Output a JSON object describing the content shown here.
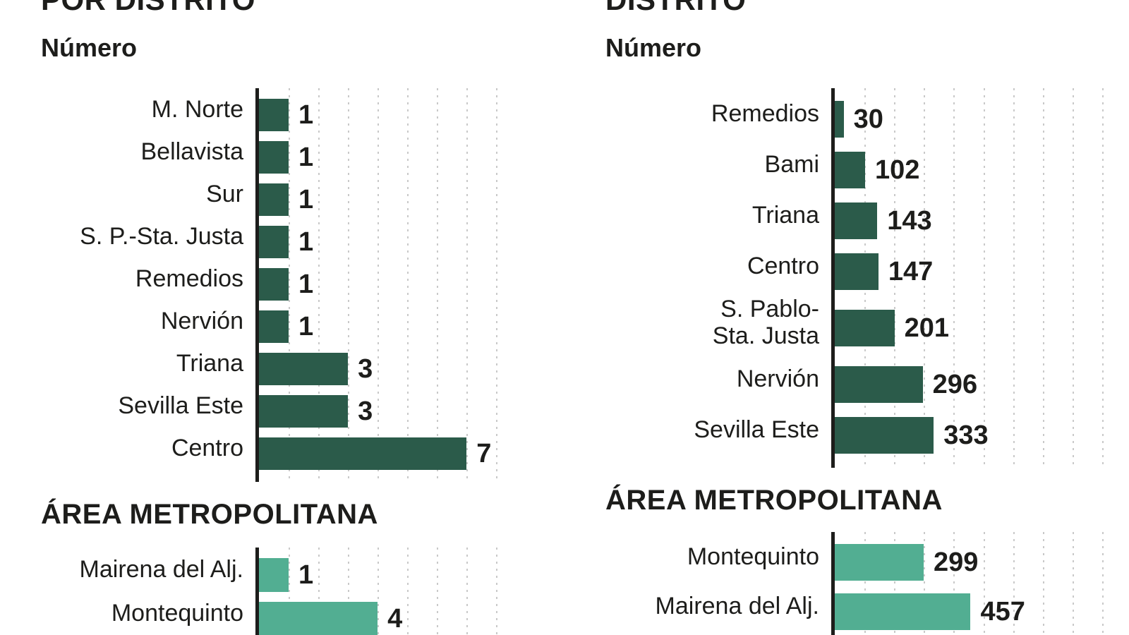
{
  "page": {
    "background": "#ffffff",
    "text_color": "#1d1d1b"
  },
  "colors": {
    "district_bar": "#2b5b4a",
    "metro_bar": "#52ae92",
    "axis": "#1d1d1b",
    "gridline": "#c9c9c9"
  },
  "left": {
    "title": "POR DISTRITO",
    "subtitle": "Número",
    "metro_heading": "ÁREA METROPOLITANA"
  },
  "right": {
    "title": "DISTRITO",
    "subtitle": "Número",
    "metro_heading": "ÁREA METROPOLITANA"
  },
  "chart_data": [
    {
      "id": "left-district",
      "type": "bar",
      "orientation": "horizontal",
      "title": "POR DISTRITO",
      "ylabel": "Número",
      "categories": [
        "M. Norte",
        "Bellavista",
        "Sur",
        "S. P.-Sta. Justa",
        "Remedios",
        "Nervión",
        "Triana",
        "Sevilla Este",
        "Centro"
      ],
      "values": [
        1,
        1,
        1,
        1,
        1,
        1,
        3,
        3,
        7
      ],
      "xlim": [
        0,
        9.3
      ],
      "axis_max": 9.3,
      "grid_step": 1,
      "grid_count": 8,
      "grid_on": true,
      "legend": "none",
      "bar_color": "#2b5b4a"
    },
    {
      "id": "left-metro",
      "type": "bar",
      "orientation": "horizontal",
      "title": "ÁREA METROPOLITANA",
      "categories": [
        "Mairena del Alj.",
        "Montequinto"
      ],
      "values": [
        1,
        4
      ],
      "xlim": [
        0,
        9.3
      ],
      "axis_max": 9.3,
      "grid_step": 1,
      "grid_count": 8,
      "grid_on": true,
      "legend": "none",
      "bar_color": "#52ae92"
    },
    {
      "id": "right-district",
      "type": "bar",
      "orientation": "horizontal",
      "title": "DISTRITO",
      "ylabel": "Número",
      "categories": [
        "Remedios",
        "Bami",
        "Triana",
        "Centro",
        "S. Pablo-\nSta. Justa",
        "Nervión",
        "Sevilla Este"
      ],
      "values": [
        30,
        102,
        143,
        147,
        201,
        296,
        333
      ],
      "xlim": [
        0,
        990
      ],
      "axis_max": 990,
      "grid_step": 100,
      "grid_count": 9,
      "grid_on": true,
      "legend": "none",
      "bar_color": "#2b5b4a"
    },
    {
      "id": "right-metro",
      "type": "bar",
      "orientation": "horizontal",
      "title": "ÁREA METROPOLITANA",
      "categories": [
        "Montequinto",
        "Mairena del Alj."
      ],
      "values": [
        299,
        457
      ],
      "xlim": [
        0,
        990
      ],
      "axis_max": 990,
      "grid_step": 100,
      "grid_count": 9,
      "grid_on": true,
      "legend": "none",
      "bar_color": "#52ae92"
    }
  ]
}
